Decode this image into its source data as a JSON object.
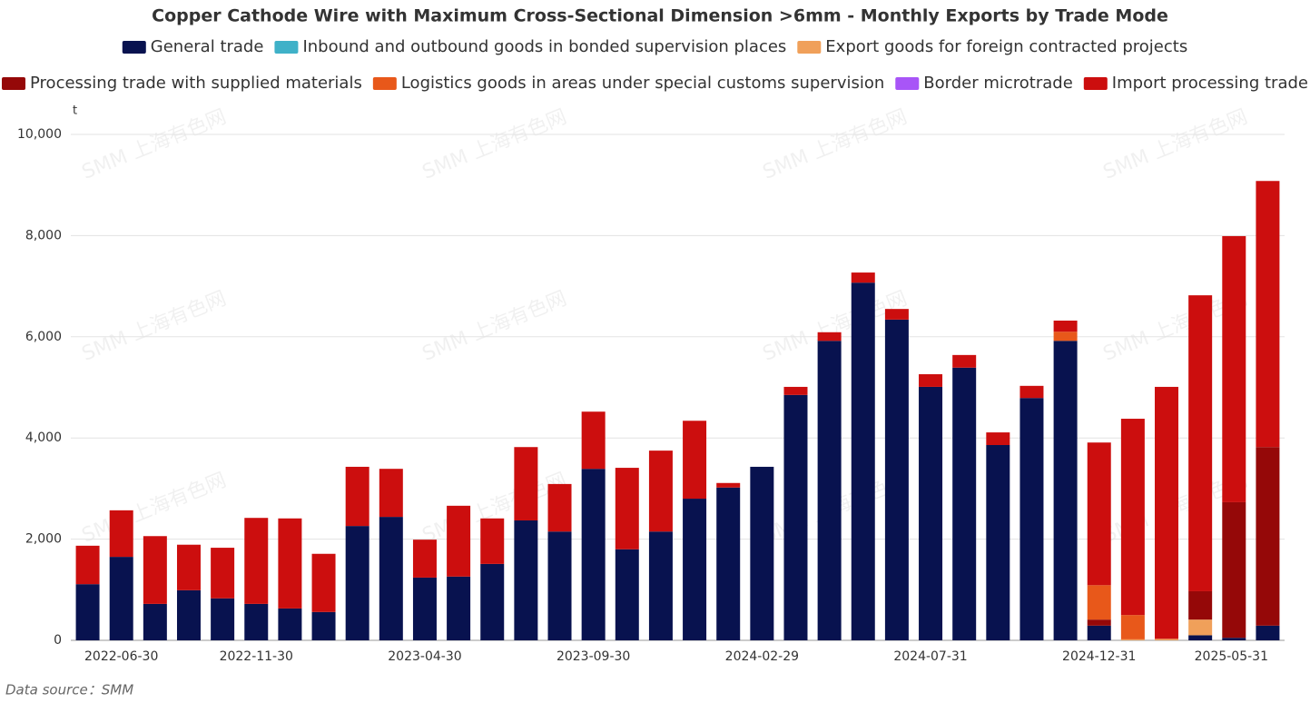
{
  "chart_data": {
    "type": "stacked_bar",
    "title": "Copper Cathode Wire with Maximum Cross-Sectional Dimension >6mm - Monthly Exports by Trade Mode",
    "y_label": "t",
    "source": "Data source：SMM",
    "watermark": "SMM 上海有色网",
    "categories": [
      "2022-06-30",
      null,
      null,
      null,
      null,
      "2022-11-30",
      null,
      null,
      null,
      null,
      "2023-04-30",
      null,
      null,
      null,
      null,
      "2023-09-30",
      null,
      null,
      null,
      null,
      "2024-02-29",
      null,
      null,
      null,
      null,
      "2024-07-31",
      null,
      null,
      null,
      null,
      "2024-12-31",
      null,
      null,
      null,
      null,
      "2025-05-31"
    ],
    "series": [
      {
        "name": "General trade",
        "color": "#08124f",
        "values": [
          1110,
          1650,
          720,
          990,
          830,
          720,
          630,
          560,
          2260,
          2440,
          1240,
          1260,
          1510,
          2370,
          2150,
          3390,
          1800,
          2150,
          2800,
          3020,
          3430,
          4850,
          5920,
          7070,
          6340,
          5010,
          5390,
          3860,
          4790,
          5920,
          290,
          0,
          0,
          100,
          50,
          290
        ]
      },
      {
        "name": "Inbound and outbound goods in bonded supervision places",
        "color": "#3fb1c8",
        "values": [
          0,
          0,
          0,
          0,
          0,
          0,
          0,
          0,
          0,
          0,
          0,
          0,
          0,
          0,
          0,
          0,
          0,
          0,
          0,
          0,
          0,
          0,
          0,
          0,
          0,
          0,
          0,
          0,
          0,
          0,
          0,
          0,
          0,
          0,
          0,
          0
        ]
      },
      {
        "name": "Export goods for foreign contracted projects",
        "color": "#f0a05a",
        "values": [
          0,
          0,
          0,
          0,
          0,
          0,
          0,
          0,
          0,
          0,
          0,
          0,
          0,
          0,
          0,
          0,
          0,
          0,
          0,
          0,
          0,
          0,
          0,
          0,
          0,
          0,
          0,
          0,
          0,
          0,
          0,
          20,
          30,
          310,
          0,
          0
        ]
      },
      {
        "name": "Processing trade with supplied materials",
        "color": "#950808",
        "values": [
          0,
          0,
          0,
          0,
          0,
          0,
          0,
          0,
          0,
          0,
          0,
          0,
          0,
          0,
          0,
          0,
          0,
          0,
          0,
          0,
          0,
          0,
          0,
          0,
          0,
          0,
          0,
          0,
          0,
          0,
          120,
          0,
          0,
          560,
          2680,
          3530
        ]
      },
      {
        "name": "Logistics goods in areas under special customs supervision",
        "color": "#e8581a",
        "values": [
          0,
          0,
          0,
          0,
          0,
          0,
          0,
          0,
          0,
          0,
          0,
          0,
          0,
          0,
          0,
          0,
          0,
          0,
          0,
          0,
          0,
          0,
          0,
          0,
          0,
          0,
          0,
          0,
          0,
          180,
          680,
          480,
          0,
          0,
          0,
          0
        ]
      },
      {
        "name": "Border microtrade",
        "color": "#a855f7",
        "values": [
          0,
          0,
          0,
          0,
          0,
          0,
          0,
          0,
          0,
          0,
          0,
          0,
          0,
          0,
          0,
          0,
          0,
          0,
          0,
          0,
          0,
          0,
          0,
          0,
          0,
          0,
          0,
          0,
          0,
          0,
          0,
          0,
          0,
          0,
          0,
          0
        ]
      },
      {
        "name": "Import processing trade",
        "color": "#cc0e0e",
        "values": [
          760,
          920,
          1340,
          900,
          1000,
          1700,
          1780,
          1150,
          1170,
          950,
          750,
          1400,
          900,
          1450,
          940,
          1130,
          1610,
          1600,
          1540,
          90,
          0,
          160,
          170,
          200,
          210,
          250,
          250,
          250,
          240,
          220,
          2820,
          3880,
          4980,
          5850,
          5260,
          5260
        ]
      }
    ],
    "ylim": [
      0,
      10000
    ],
    "yticks": [
      0,
      {
        "value": 2000,
        "label": "2,000"
      },
      {
        "value": 4000,
        "label": "4,000"
      },
      {
        "value": 6000,
        "label": "6,000"
      },
      {
        "value": 8000,
        "label": "8,000"
      },
      {
        "value": 10000,
        "label": "10,000"
      }
    ],
    "grid": true
  }
}
